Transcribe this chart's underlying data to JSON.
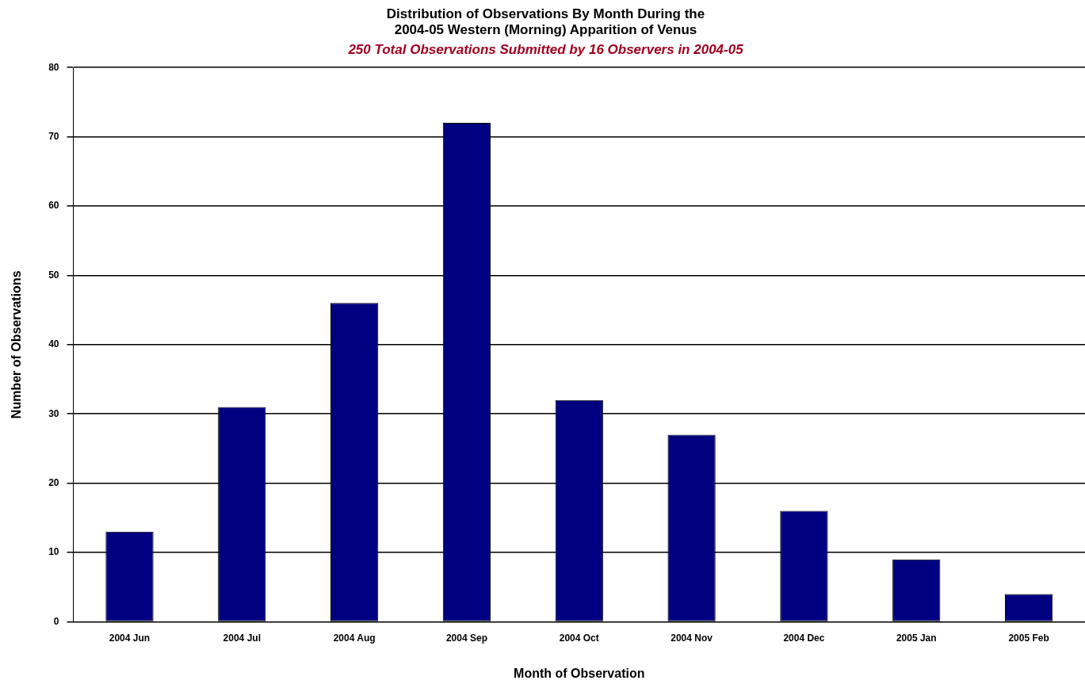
{
  "chart_data": {
    "type": "bar",
    "title": "Distribution of Observations By Month During the\n2004-05 Western (Morning) Apparition of Venus",
    "subtitle": "250 Total Observations Submitted by 16 Observers in 2004-05",
    "xlabel": "Month of Observation",
    "ylabel": "Number of Observations",
    "categories": [
      "2004 Jun",
      "2004 Jul",
      "2004 Aug",
      "2004 Sep",
      "2004 Oct",
      "2004 Nov",
      "2004 Dec",
      "2005 Jan",
      "2005 Feb"
    ],
    "values": [
      13,
      31,
      46,
      72,
      32,
      27,
      16,
      9,
      4
    ],
    "color": "#000080",
    "ylim": [
      0,
      80
    ],
    "yticks": [
      0,
      10,
      20,
      30,
      40,
      50,
      60,
      70,
      80
    ],
    "grid": "y",
    "legend": false
  }
}
